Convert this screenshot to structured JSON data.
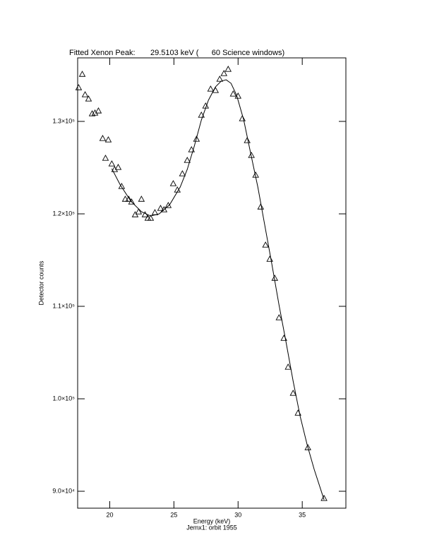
{
  "chart_data": {
    "type": "scatter",
    "title": "Fitted Xenon Peak:       29.5103 keV (      60 Science windows)",
    "x_label": "Energy (keV)",
    "subtitle": "Jemx1: orbit 1955",
    "y_label": "Detector counts",
    "xlim": [
      17.5,
      38.4
    ],
    "ylim": [
      88170,
      136870
    ],
    "xticks": [
      20,
      25,
      30,
      35
    ],
    "yticks": [
      {
        "value": 90000,
        "label": "9.0×10⁴"
      },
      {
        "value": 100000,
        "label": "1.0×10⁵"
      },
      {
        "value": 110000,
        "label": "1.1×10⁵"
      },
      {
        "value": 120000,
        "label": "1.2×10⁵"
      },
      {
        "value": 130000,
        "label": "1.3×10⁵"
      }
    ],
    "series": [
      {
        "style": "triangle",
        "color": "#000000",
        "x": [
          17.58,
          17.86,
          18.08,
          18.35,
          18.63,
          18.85,
          19.12,
          19.45,
          19.67,
          19.89,
          20.16,
          20.38,
          20.66,
          20.93,
          21.21,
          21.48,
          21.7,
          21.98,
          22.25,
          22.47,
          22.75,
          22.97,
          23.19,
          23.52,
          23.96,
          24.23,
          24.56,
          24.95,
          25.27,
          25.66,
          26.04,
          26.37,
          26.76,
          27.14,
          27.47,
          27.86,
          28.24,
          28.57,
          28.9,
          29.23,
          29.62,
          30.0,
          30.33,
          30.71,
          31.04,
          31.37,
          31.76,
          32.14,
          32.47,
          32.86,
          33.19,
          33.57,
          33.9,
          34.29,
          34.67,
          35.44,
          36.7
        ],
        "values": [
          133660,
          135110,
          132900,
          132440,
          130840,
          130920,
          131150,
          128170,
          126030,
          128020,
          125420,
          124810,
          125040,
          122980,
          121600,
          121600,
          121300,
          119920,
          120230,
          121600,
          119920,
          119540,
          119540,
          120150,
          120610,
          120460,
          120920,
          123280,
          122600,
          124350,
          125800,
          126950,
          128090,
          130690,
          131680,
          133510,
          133360,
          134580,
          135190,
          135650,
          132980,
          132750,
          130310,
          127940,
          126340,
          124200,
          120760,
          116640,
          115110,
          113050,
          108780,
          106560,
          103440,
          100610,
          98470,
          94730,
          89240
        ]
      },
      {
        "style": "line",
        "color": "#000000",
        "x": [
          20.16,
          20.82,
          21.65,
          22.47,
          23.19,
          23.85,
          24.67,
          25.49,
          26.04,
          26.59,
          27.14,
          27.69,
          28.24,
          28.68,
          29.07,
          29.45,
          29.89,
          30.44,
          30.99,
          31.54,
          32.09,
          32.64,
          33.19,
          33.74,
          34.29,
          34.84,
          35.38,
          35.93,
          36.7
        ],
        "values": [
          124890,
          123130,
          121370,
          120230,
          119770,
          120000,
          120990,
          122900,
          124810,
          127330,
          130150,
          132290,
          133740,
          134350,
          134500,
          134120,
          132820,
          130150,
          126490,
          122900,
          118700,
          114500,
          110150,
          106110,
          101910,
          98090,
          95040,
          92370,
          89080
        ]
      }
    ]
  }
}
